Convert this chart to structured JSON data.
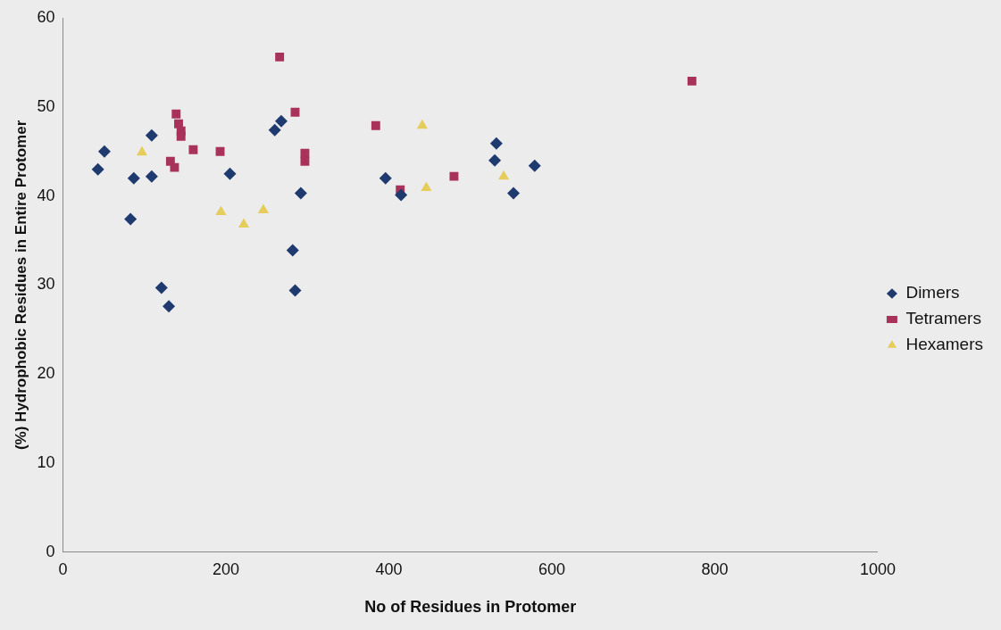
{
  "chart_data": {
    "type": "scatter",
    "xlabel": "No of Residues in Protomer",
    "ylabel": "(%) Hydrophobic Residues in Entire Protomer",
    "xlim": [
      0,
      1000
    ],
    "xticks": [
      0,
      200,
      400,
      600,
      800,
      1000
    ],
    "ylim": [
      0,
      60
    ],
    "yticks": [
      0,
      10,
      20,
      30,
      40,
      50,
      60
    ],
    "grid": false,
    "legend": "right",
    "series": [
      {
        "name": "Dimers",
        "color": "#1f3a6e",
        "marker": "diamond",
        "x": [
          43,
          51,
          87,
          83,
          109,
          109,
          121,
          130,
          205,
          260,
          268,
          285,
          282,
          292,
          396,
          415,
          530,
          532,
          553,
          579
        ],
        "values": [
          43.0,
          45.0,
          42.0,
          37.4,
          46.8,
          42.2,
          29.7,
          27.6,
          42.5,
          47.4,
          48.4,
          29.4,
          33.9,
          40.3,
          42.0,
          40.1,
          44.0,
          45.9,
          40.3,
          43.4
        ]
      },
      {
        "name": "Tetramers",
        "color": "#a8325a",
        "marker": "square",
        "x": [
          266,
          139,
          142,
          145,
          145,
          160,
          132,
          137,
          193,
          285,
          297,
          297,
          384,
          414,
          480,
          772
        ],
        "values": [
          55.6,
          49.2,
          48.1,
          47.3,
          46.7,
          45.2,
          43.9,
          43.2,
          45.0,
          49.4,
          44.8,
          43.9,
          47.9,
          40.7,
          42.2,
          52.9
        ]
      },
      {
        "name": "Hexamers",
        "color": "#e6cc5a",
        "marker": "triangle",
        "x": [
          97,
          194,
          222,
          246,
          441,
          446,
          541
        ],
        "values": [
          44.9,
          38.2,
          36.8,
          38.4,
          47.9,
          40.9,
          42.2
        ]
      }
    ]
  }
}
